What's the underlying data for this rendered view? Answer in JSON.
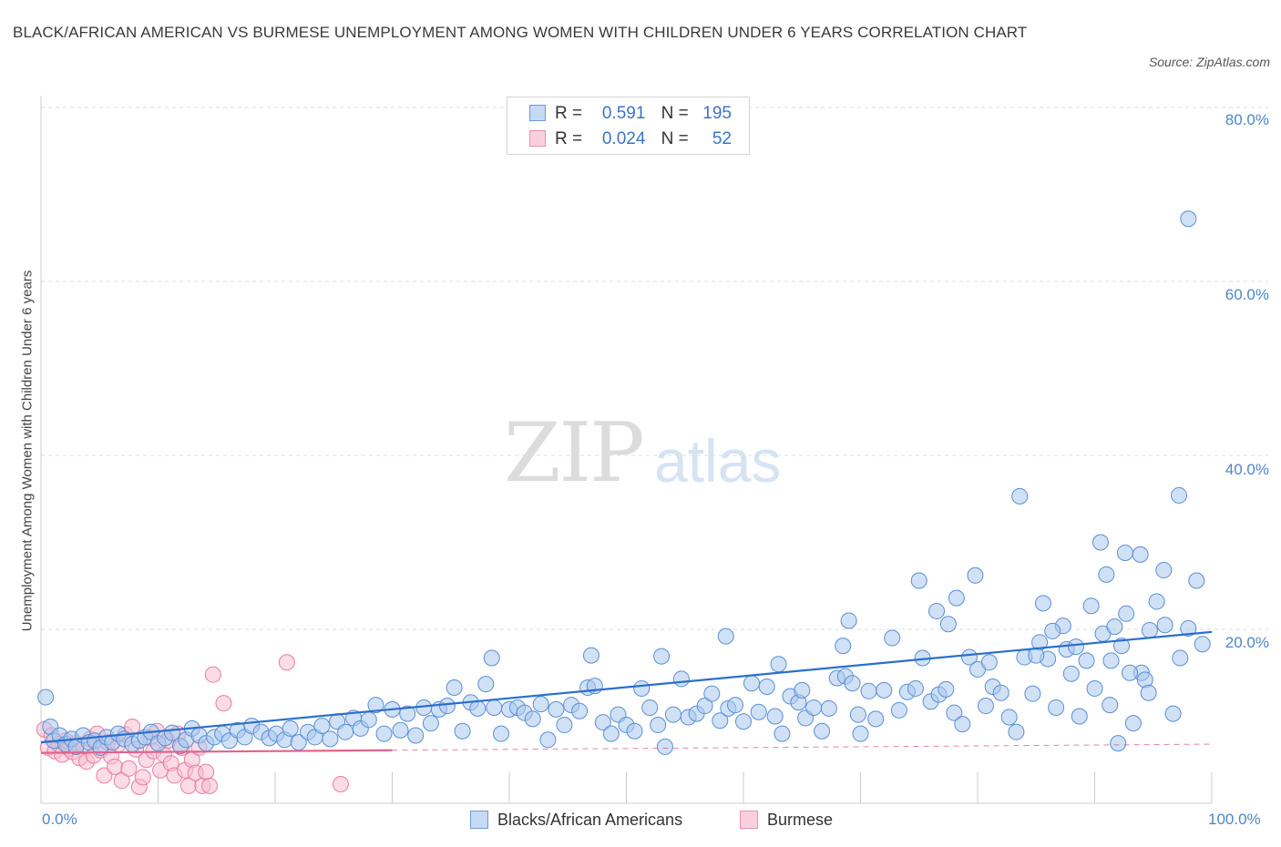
{
  "title": "BLACK/AFRICAN AMERICAN VS BURMESE UNEMPLOYMENT AMONG WOMEN WITH CHILDREN UNDER 6 YEARS CORRELATION CHART",
  "source": "Source: ZipAtlas.com",
  "watermark": {
    "zip": "ZIP",
    "atlas": "atlas"
  },
  "colors": {
    "blue_fill": "#a9c8ee",
    "blue_stroke": "#5a8fd4",
    "blue_line": "#2a6fcc",
    "pink_fill": "#f7bdd0",
    "pink_stroke": "#e87fa0",
    "pink_line": "#e0648e",
    "tick_text": "#4f86c6",
    "grid": "#dddddd"
  },
  "stats": [
    {
      "r_label": "R =",
      "r_value": "0.591",
      "n_label": "N =",
      "n_value": "195",
      "color": "blue"
    },
    {
      "r_label": "R =",
      "r_value": "0.024",
      "n_label": "N =",
      "n_value": "52",
      "color": "pink"
    }
  ],
  "legend": [
    {
      "label": "Blacks/African Americans",
      "color": "blue"
    },
    {
      "label": "Burmese",
      "color": "pink"
    }
  ],
  "chart_data": {
    "type": "scatter",
    "title": "BLACK/AFRICAN AMERICAN VS BURMESE UNEMPLOYMENT AMONG WOMEN WITH CHILDREN UNDER 6 YEARS CORRELATION CHART",
    "xlabel": "",
    "ylabel": "Unemployment Among Women with Children Under 6 years",
    "xlim": [
      0,
      100
    ],
    "ylim": [
      0,
      80
    ],
    "x_tick_labels": [
      "0.0%",
      "100.0%"
    ],
    "y_ticks": [
      20,
      40,
      60,
      80
    ],
    "y_tick_labels": [
      "20.0%",
      "40.0%",
      "60.0%",
      "80.0%"
    ],
    "grid": "horizontal dashed",
    "legend_position": "bottom-center",
    "series": [
      {
        "name": "Blacks/African Americans",
        "color": "blue",
        "trend": {
          "x": [
            0,
            100
          ],
          "y": [
            7.0,
            19.7
          ]
        },
        "points": [
          [
            0.4,
            12.2
          ],
          [
            0.8,
            8.8
          ],
          [
            1.1,
            7.2
          ],
          [
            1.6,
            7.8
          ],
          [
            2.1,
            6.8
          ],
          [
            2.6,
            7.4
          ],
          [
            3.0,
            6.5
          ],
          [
            3.6,
            7.8
          ],
          [
            4.1,
            7.0
          ],
          [
            4.6,
            7.2
          ],
          [
            5.1,
            6.4
          ],
          [
            5.6,
            7.6
          ],
          [
            6.1,
            7.0
          ],
          [
            6.6,
            8.0
          ],
          [
            7.1,
            7.4
          ],
          [
            7.8,
            6.8
          ],
          [
            8.4,
            7.2
          ],
          [
            8.9,
            7.6
          ],
          [
            9.4,
            8.2
          ],
          [
            10.0,
            6.9
          ],
          [
            10.6,
            7.5
          ],
          [
            11.2,
            8.1
          ],
          [
            11.9,
            6.6
          ],
          [
            12.4,
            7.3
          ],
          [
            12.9,
            8.6
          ],
          [
            13.5,
            7.8
          ],
          [
            14.1,
            6.9
          ],
          [
            14.8,
            7.6
          ],
          [
            15.5,
            8.0
          ],
          [
            16.1,
            7.2
          ],
          [
            16.8,
            8.4
          ],
          [
            17.4,
            7.6
          ],
          [
            18.0,
            8.9
          ],
          [
            18.8,
            8.2
          ],
          [
            19.5,
            7.5
          ],
          [
            20.1,
            8.0
          ],
          [
            20.8,
            7.3
          ],
          [
            21.3,
            8.6
          ],
          [
            22.0,
            7.0
          ],
          [
            22.8,
            8.2
          ],
          [
            23.4,
            7.6
          ],
          [
            24.0,
            8.9
          ],
          [
            24.7,
            7.4
          ],
          [
            25.3,
            9.4
          ],
          [
            26.0,
            8.2
          ],
          [
            26.7,
            9.8
          ],
          [
            27.3,
            8.6
          ],
          [
            28.0,
            9.6
          ],
          [
            28.6,
            11.3
          ],
          [
            29.3,
            8.0
          ],
          [
            30.0,
            10.8
          ],
          [
            30.7,
            8.4
          ],
          [
            31.3,
            10.3
          ],
          [
            32.0,
            7.8
          ],
          [
            32.7,
            11.0
          ],
          [
            33.3,
            9.2
          ],
          [
            34.0,
            10.8
          ],
          [
            34.7,
            11.2
          ],
          [
            35.3,
            13.3
          ],
          [
            36.0,
            8.3
          ],
          [
            36.7,
            11.6
          ],
          [
            37.3,
            10.9
          ],
          [
            38.0,
            13.7
          ],
          [
            38.7,
            11.0
          ],
          [
            39.3,
            8.0
          ],
          [
            40.0,
            10.8
          ],
          [
            40.7,
            11.0
          ],
          [
            41.3,
            10.4
          ],
          [
            42.0,
            9.7
          ],
          [
            42.7,
            11.4
          ],
          [
            43.3,
            7.3
          ],
          [
            44.0,
            10.8
          ],
          [
            44.7,
            9.0
          ],
          [
            45.3,
            11.3
          ],
          [
            46.0,
            10.6
          ],
          [
            46.7,
            13.3
          ],
          [
            47.3,
            13.5
          ],
          [
            48.0,
            9.3
          ],
          [
            48.7,
            8.0
          ],
          [
            49.3,
            10.2
          ],
          [
            50.0,
            9.0
          ],
          [
            50.7,
            8.3
          ],
          [
            51.3,
            13.2
          ],
          [
            52.0,
            11.0
          ],
          [
            52.7,
            9.0
          ],
          [
            53.3,
            6.5
          ],
          [
            54.0,
            10.2
          ],
          [
            54.7,
            14.3
          ],
          [
            55.3,
            9.9
          ],
          [
            56.0,
            10.3
          ],
          [
            56.7,
            11.2
          ],
          [
            57.3,
            12.6
          ],
          [
            58.0,
            9.5
          ],
          [
            58.7,
            10.9
          ],
          [
            59.3,
            11.3
          ],
          [
            60.0,
            9.4
          ],
          [
            60.7,
            13.8
          ],
          [
            61.3,
            10.5
          ],
          [
            62.0,
            13.4
          ],
          [
            62.7,
            10.0
          ],
          [
            63.3,
            8.0
          ],
          [
            64.0,
            12.3
          ],
          [
            64.7,
            11.6
          ],
          [
            65.3,
            9.8
          ],
          [
            66.0,
            11.0
          ],
          [
            66.7,
            8.3
          ],
          [
            67.3,
            10.9
          ],
          [
            68.0,
            14.4
          ],
          [
            68.7,
            14.6
          ],
          [
            69.3,
            13.8
          ],
          [
            70.0,
            8.0
          ],
          [
            70.7,
            12.9
          ],
          [
            71.3,
            9.7
          ],
          [
            72.0,
            13.0
          ],
          [
            72.7,
            19.0
          ],
          [
            73.3,
            10.7
          ],
          [
            74.0,
            12.8
          ],
          [
            74.7,
            13.2
          ],
          [
            75.3,
            16.7
          ],
          [
            76.0,
            11.7
          ],
          [
            76.7,
            12.5
          ],
          [
            77.3,
            13.1
          ],
          [
            78.0,
            10.4
          ],
          [
            78.7,
            9.1
          ],
          [
            79.3,
            16.8
          ],
          [
            80.0,
            15.4
          ],
          [
            80.7,
            11.2
          ],
          [
            81.3,
            13.4
          ],
          [
            82.0,
            12.7
          ],
          [
            82.7,
            9.9
          ],
          [
            83.3,
            8.2
          ],
          [
            84.0,
            16.8
          ],
          [
            84.7,
            12.6
          ],
          [
            85.3,
            18.5
          ],
          [
            86.0,
            16.6
          ],
          [
            86.7,
            11.0
          ],
          [
            87.3,
            20.4
          ],
          [
            88.0,
            14.9
          ],
          [
            88.7,
            10.0
          ],
          [
            89.3,
            16.4
          ],
          [
            90.0,
            13.2
          ],
          [
            90.7,
            19.5
          ],
          [
            91.3,
            11.3
          ],
          [
            92.0,
            6.9
          ],
          [
            92.7,
            21.8
          ],
          [
            93.3,
            9.2
          ],
          [
            94.0,
            15.0
          ],
          [
            94.7,
            19.9
          ],
          [
            95.3,
            23.2
          ],
          [
            96.0,
            20.5
          ],
          [
            96.7,
            10.3
          ],
          [
            97.3,
            16.7
          ],
          [
            98.0,
            20.1
          ],
          [
            98.7,
            25.6
          ],
          [
            99.2,
            18.3
          ],
          [
            38.5,
            16.7
          ],
          [
            47.0,
            17.0
          ],
          [
            53.0,
            16.9
          ],
          [
            58.5,
            19.2
          ],
          [
            68.5,
            18.1
          ],
          [
            69.0,
            21.0
          ],
          [
            75.0,
            25.6
          ],
          [
            76.5,
            22.1
          ],
          [
            77.5,
            20.6
          ],
          [
            78.2,
            23.6
          ],
          [
            79.8,
            26.2
          ],
          [
            85.0,
            17.0
          ],
          [
            85.6,
            23.0
          ],
          [
            86.4,
            19.8
          ],
          [
            87.6,
            17.7
          ],
          [
            88.4,
            18.0
          ],
          [
            89.7,
            22.7
          ],
          [
            91.0,
            26.3
          ],
          [
            91.7,
            20.3
          ],
          [
            93.9,
            28.6
          ],
          [
            94.3,
            14.2
          ],
          [
            95.9,
            26.8
          ],
          [
            97.2,
            35.4
          ],
          [
            83.6,
            35.3
          ],
          [
            91.4,
            16.4
          ],
          [
            92.3,
            18.1
          ],
          [
            93.0,
            15.0
          ],
          [
            94.6,
            12.7
          ],
          [
            81.0,
            16.2
          ],
          [
            69.8,
            10.2
          ],
          [
            98.0,
            67.2
          ],
          [
            90.5,
            30.0
          ],
          [
            92.6,
            28.8
          ],
          [
            65.0,
            13.0
          ],
          [
            63.0,
            16.0
          ]
        ]
      },
      {
        "name": "Burmese",
        "color": "pink",
        "trend": {
          "x": [
            0,
            30
          ],
          "y": [
            5.8,
            6.1
          ]
        },
        "trend_extension": {
          "x": [
            30,
            100
          ],
          "y": [
            6.1,
            6.8
          ]
        },
        "points": [
          [
            0.3,
            8.5
          ],
          [
            0.6,
            6.4
          ],
          [
            0.9,
            7.8
          ],
          [
            1.2,
            6.0
          ],
          [
            1.5,
            6.8
          ],
          [
            1.8,
            5.6
          ],
          [
            2.1,
            7.2
          ],
          [
            2.4,
            6.3
          ],
          [
            2.7,
            5.9
          ],
          [
            3.0,
            6.9
          ],
          [
            3.3,
            5.2
          ],
          [
            3.6,
            6.6
          ],
          [
            3.9,
            4.8
          ],
          [
            4.2,
            7.4
          ],
          [
            4.5,
            5.5
          ],
          [
            4.8,
            8.0
          ],
          [
            5.1,
            6.1
          ],
          [
            5.4,
            3.2
          ],
          [
            5.7,
            7.0
          ],
          [
            6.0,
            5.4
          ],
          [
            6.3,
            4.2
          ],
          [
            6.6,
            6.8
          ],
          [
            6.9,
            2.6
          ],
          [
            7.2,
            7.9
          ],
          [
            7.5,
            4.0
          ],
          [
            7.8,
            8.8
          ],
          [
            8.1,
            6.2
          ],
          [
            8.4,
            1.9
          ],
          [
            8.7,
            3.0
          ],
          [
            9.0,
            5.0
          ],
          [
            9.3,
            7.5
          ],
          [
            9.6,
            6.0
          ],
          [
            9.9,
            8.3
          ],
          [
            10.2,
            3.8
          ],
          [
            10.5,
            5.6
          ],
          [
            10.8,
            7.2
          ],
          [
            11.1,
            4.6
          ],
          [
            11.4,
            3.2
          ],
          [
            11.7,
            8.0
          ],
          [
            12.0,
            6.4
          ],
          [
            12.3,
            3.8
          ],
          [
            12.6,
            2.0
          ],
          [
            12.9,
            5.0
          ],
          [
            13.2,
            3.5
          ],
          [
            13.5,
            6.4
          ],
          [
            13.8,
            2.0
          ],
          [
            14.1,
            3.6
          ],
          [
            14.4,
            2.0
          ],
          [
            14.7,
            14.8
          ],
          [
            15.6,
            11.5
          ],
          [
            21.0,
            16.2
          ],
          [
            25.6,
            2.2
          ]
        ]
      }
    ]
  }
}
